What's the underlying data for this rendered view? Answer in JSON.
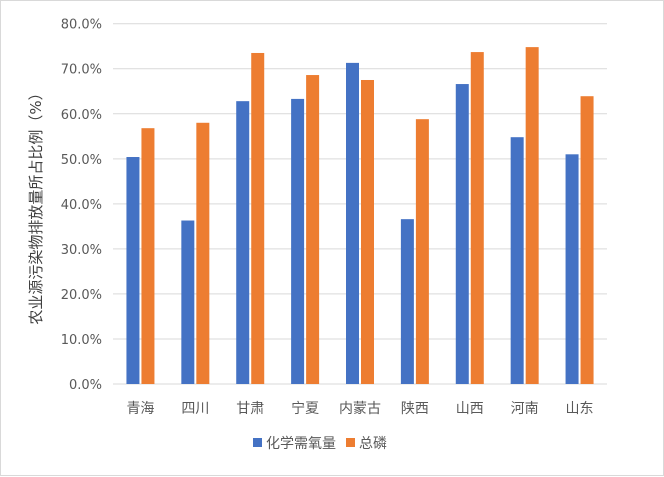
{
  "chart_data": {
    "type": "bar",
    "title": "",
    "xlabel": "",
    "ylabel": "农业源污染物排放量所占比例（%）",
    "ylim": [
      0,
      80
    ],
    "yticks": [
      "0.0%",
      "10.0%",
      "20.0%",
      "30.0%",
      "40.0%",
      "50.0%",
      "60.0%",
      "70.0%",
      "80.0%"
    ],
    "grid": true,
    "legend_position": "bottom",
    "categories": [
      "青海",
      "四川",
      "甘肃",
      "宁夏",
      "内蒙古",
      "陕西",
      "山西",
      "河南",
      "山东"
    ],
    "series": [
      {
        "name": "化学需氧量",
        "color": "#4472c4",
        "values": [
          50.4,
          36.3,
          62.8,
          63.3,
          71.3,
          36.6,
          66.6,
          54.8,
          51.0
        ]
      },
      {
        "name": "总磷",
        "color": "#ed7d31",
        "values": [
          56.8,
          58.0,
          73.5,
          68.6,
          67.5,
          58.8,
          73.7,
          74.8,
          63.9
        ]
      }
    ]
  }
}
